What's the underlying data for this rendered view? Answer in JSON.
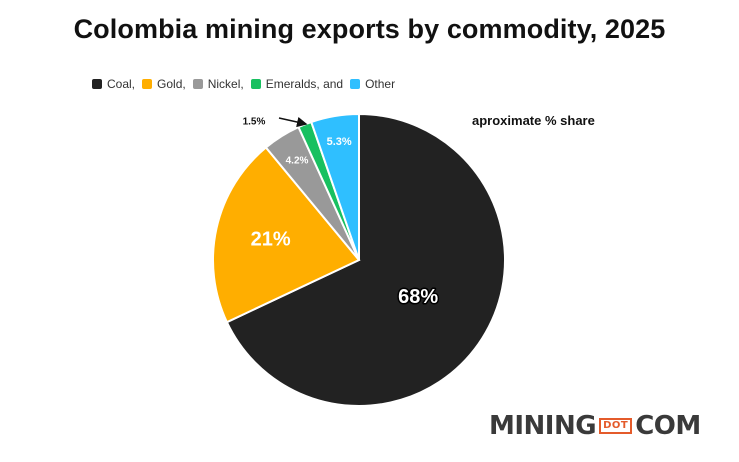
{
  "chart_data": {
    "type": "pie",
    "title": "Colombia mining exports by commodity, 2025",
    "annotation": "aproximate %  share",
    "slices": [
      {
        "name": "Coal",
        "legend_label": "Coal,",
        "value": 68,
        "label": "68%",
        "color": "#222222"
      },
      {
        "name": "Gold",
        "legend_label": "Gold,",
        "value": 21,
        "label": "21%",
        "color": "#FFAE00"
      },
      {
        "name": "Nickel",
        "legend_label": "Nickel,",
        "value": 4.2,
        "label": "4.2%",
        "color": "#999999"
      },
      {
        "name": "Emeralds",
        "legend_label": "Emeralds, and",
        "value": 1.5,
        "label": "1.5%",
        "color": "#18C060"
      },
      {
        "name": "Other",
        "legend_label": "Other",
        "value": 5.3,
        "label": "5.3%",
        "color": "#2FBFFF"
      }
    ],
    "legend_position": "top-left"
  },
  "branding": {
    "logo_left": "MINING",
    "logo_mid": "DOT",
    "logo_right": "COM"
  }
}
